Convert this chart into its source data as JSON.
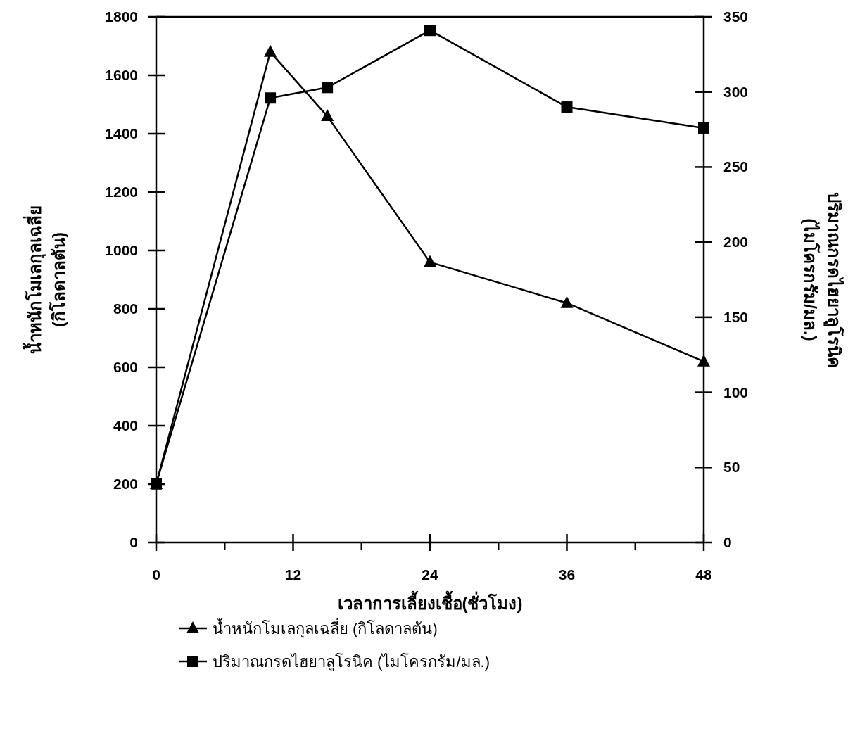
{
  "chart_data": {
    "type": "line",
    "xlabel": "เวลาการเลี้ยงเชื้อ(ชั่วโมง)",
    "ylabel": "น้ำหนักโมเลกุลเฉลี่ย\n(กิโลดาลตัน)",
    "y2label": "ปริมาณกรดไฮยาลูโรนิค\n(ไมโครกรัม/มล.)",
    "xlim": [
      0,
      48
    ],
    "xticks": [
      0,
      12,
      24,
      36,
      48
    ],
    "ylim": [
      0,
      1800
    ],
    "yticks": [
      0,
      200,
      400,
      600,
      800,
      1000,
      1200,
      1400,
      1600,
      1800
    ],
    "y2lim": [
      0,
      350
    ],
    "y2ticks": [
      0,
      50,
      100,
      150,
      200,
      250,
      300,
      350
    ],
    "grid": false,
    "legend": "bottom",
    "line_style": "solid",
    "series": [
      {
        "name": "น้ำหนักโมเลกุลเฉลี่ย (กิโลดาลตัน)",
        "color": "#000000",
        "marker": "triangle",
        "x": [
          0,
          10,
          15,
          24,
          36,
          48
        ],
        "values": [
          200,
          1680,
          1460,
          960,
          820,
          620
        ]
      },
      {
        "name": "ปริมาณกรดไฮยาลูโรนิค (ไมโครกรัม/มล.)",
        "color": "#000000",
        "marker": "square",
        "axis": "y2",
        "x": [
          0,
          10,
          15,
          24,
          36,
          48
        ],
        "values": [
          39,
          296,
          303,
          341,
          290,
          276
        ]
      }
    ]
  }
}
